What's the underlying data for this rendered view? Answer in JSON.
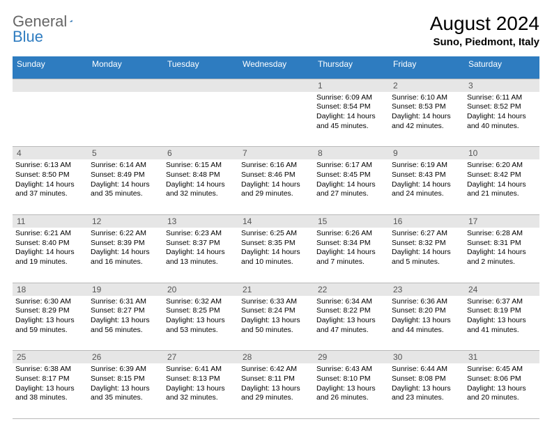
{
  "brand": {
    "part1": "General",
    "part2": "Blue"
  },
  "title": "August 2024",
  "location": "Suno, Piedmont, Italy",
  "colors": {
    "headerBg": "#2e7cc0",
    "headerFg": "#ffffff",
    "dayNumberBg": "#e6e6e6",
    "dayNumberFg": "#555555",
    "borderColor": "#b8b8b8",
    "bodyBg": "#ffffff",
    "textColor": "#000000",
    "logoGray": "#666666",
    "logoBlue": "#2e7cc0"
  },
  "dayNames": [
    "Sunday",
    "Monday",
    "Tuesday",
    "Wednesday",
    "Thursday",
    "Friday",
    "Saturday"
  ],
  "leadingBlanks": 4,
  "days": [
    {
      "n": 1,
      "sunrise": "6:09 AM",
      "sunset": "8:54 PM",
      "daylight": "14 hours and 45 minutes."
    },
    {
      "n": 2,
      "sunrise": "6:10 AM",
      "sunset": "8:53 PM",
      "daylight": "14 hours and 42 minutes."
    },
    {
      "n": 3,
      "sunrise": "6:11 AM",
      "sunset": "8:52 PM",
      "daylight": "14 hours and 40 minutes."
    },
    {
      "n": 4,
      "sunrise": "6:13 AM",
      "sunset": "8:50 PM",
      "daylight": "14 hours and 37 minutes."
    },
    {
      "n": 5,
      "sunrise": "6:14 AM",
      "sunset": "8:49 PM",
      "daylight": "14 hours and 35 minutes."
    },
    {
      "n": 6,
      "sunrise": "6:15 AM",
      "sunset": "8:48 PM",
      "daylight": "14 hours and 32 minutes."
    },
    {
      "n": 7,
      "sunrise": "6:16 AM",
      "sunset": "8:46 PM",
      "daylight": "14 hours and 29 minutes."
    },
    {
      "n": 8,
      "sunrise": "6:17 AM",
      "sunset": "8:45 PM",
      "daylight": "14 hours and 27 minutes."
    },
    {
      "n": 9,
      "sunrise": "6:19 AM",
      "sunset": "8:43 PM",
      "daylight": "14 hours and 24 minutes."
    },
    {
      "n": 10,
      "sunrise": "6:20 AM",
      "sunset": "8:42 PM",
      "daylight": "14 hours and 21 minutes."
    },
    {
      "n": 11,
      "sunrise": "6:21 AM",
      "sunset": "8:40 PM",
      "daylight": "14 hours and 19 minutes."
    },
    {
      "n": 12,
      "sunrise": "6:22 AM",
      "sunset": "8:39 PM",
      "daylight": "14 hours and 16 minutes."
    },
    {
      "n": 13,
      "sunrise": "6:23 AM",
      "sunset": "8:37 PM",
      "daylight": "14 hours and 13 minutes."
    },
    {
      "n": 14,
      "sunrise": "6:25 AM",
      "sunset": "8:35 PM",
      "daylight": "14 hours and 10 minutes."
    },
    {
      "n": 15,
      "sunrise": "6:26 AM",
      "sunset": "8:34 PM",
      "daylight": "14 hours and 7 minutes."
    },
    {
      "n": 16,
      "sunrise": "6:27 AM",
      "sunset": "8:32 PM",
      "daylight": "14 hours and 5 minutes."
    },
    {
      "n": 17,
      "sunrise": "6:28 AM",
      "sunset": "8:31 PM",
      "daylight": "14 hours and 2 minutes."
    },
    {
      "n": 18,
      "sunrise": "6:30 AM",
      "sunset": "8:29 PM",
      "daylight": "13 hours and 59 minutes."
    },
    {
      "n": 19,
      "sunrise": "6:31 AM",
      "sunset": "8:27 PM",
      "daylight": "13 hours and 56 minutes."
    },
    {
      "n": 20,
      "sunrise": "6:32 AM",
      "sunset": "8:25 PM",
      "daylight": "13 hours and 53 minutes."
    },
    {
      "n": 21,
      "sunrise": "6:33 AM",
      "sunset": "8:24 PM",
      "daylight": "13 hours and 50 minutes."
    },
    {
      "n": 22,
      "sunrise": "6:34 AM",
      "sunset": "8:22 PM",
      "daylight": "13 hours and 47 minutes."
    },
    {
      "n": 23,
      "sunrise": "6:36 AM",
      "sunset": "8:20 PM",
      "daylight": "13 hours and 44 minutes."
    },
    {
      "n": 24,
      "sunrise": "6:37 AM",
      "sunset": "8:19 PM",
      "daylight": "13 hours and 41 minutes."
    },
    {
      "n": 25,
      "sunrise": "6:38 AM",
      "sunset": "8:17 PM",
      "daylight": "13 hours and 38 minutes."
    },
    {
      "n": 26,
      "sunrise": "6:39 AM",
      "sunset": "8:15 PM",
      "daylight": "13 hours and 35 minutes."
    },
    {
      "n": 27,
      "sunrise": "6:41 AM",
      "sunset": "8:13 PM",
      "daylight": "13 hours and 32 minutes."
    },
    {
      "n": 28,
      "sunrise": "6:42 AM",
      "sunset": "8:11 PM",
      "daylight": "13 hours and 29 minutes."
    },
    {
      "n": 29,
      "sunrise": "6:43 AM",
      "sunset": "8:10 PM",
      "daylight": "13 hours and 26 minutes."
    },
    {
      "n": 30,
      "sunrise": "6:44 AM",
      "sunset": "8:08 PM",
      "daylight": "13 hours and 23 minutes."
    },
    {
      "n": 31,
      "sunrise": "6:45 AM",
      "sunset": "8:06 PM",
      "daylight": "13 hours and 20 minutes."
    }
  ],
  "labels": {
    "sunrise": "Sunrise:",
    "sunset": "Sunset:",
    "daylight": "Daylight:"
  }
}
